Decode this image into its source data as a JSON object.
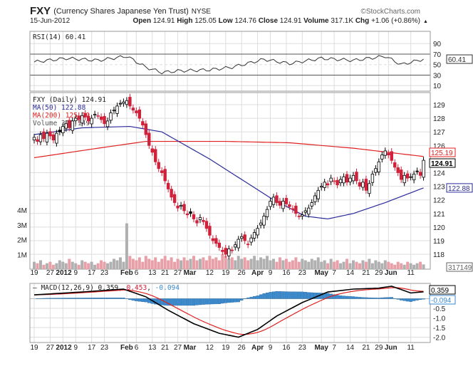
{
  "header": {
    "symbol": "FXY",
    "name": "(Currency Shares Japanese Yen Trust)",
    "exchange": "NYSE",
    "brand": "©StockCharts.com",
    "date": "15-Jun-2012",
    "open_label": "Open",
    "open": "124.91",
    "high_label": "High",
    "high": "125.05",
    "low_label": "Low",
    "low": "124.76",
    "close_label": "Close",
    "close": "124.91",
    "volume_label": "Volume",
    "volume": "317.1K",
    "chg_label": "Chg",
    "chg": "+1.06 (+0.86%)"
  },
  "colors": {
    "up": "#000000",
    "down": "#d0203a",
    "ma50": "#2a2a9a",
    "ma200": "#e02020",
    "macd_hist": "#3a8ad0",
    "volume_up": "#b0b0b0",
    "volume_down": "#e8a0a8"
  },
  "chart_data": [
    {
      "type": "line",
      "title": "RSI(14) 60.41",
      "label": "RSI(14) 60.41",
      "ylim": [
        0,
        100
      ],
      "yticks": [
        "90",
        "70",
        "50",
        "30",
        "10"
      ],
      "ytick_values": [
        90,
        70,
        50,
        30,
        10
      ],
      "last_tag": "60.41",
      "anchors": [
        [
          0,
          55
        ],
        [
          10,
          62
        ],
        [
          20,
          58
        ],
        [
          29,
          66
        ],
        [
          35,
          45
        ],
        [
          40,
          35
        ],
        [
          45,
          38
        ],
        [
          55,
          40
        ],
        [
          62,
          45
        ],
        [
          72,
          60
        ],
        [
          80,
          52
        ],
        [
          90,
          62
        ],
        [
          100,
          58
        ],
        [
          110,
          66
        ],
        [
          115,
          50
        ],
        [
          122,
          60.41
        ]
      ]
    },
    {
      "type": "candlestick",
      "legend": {
        "price": "FXY (Daily) 124.91",
        "ma50": "MA(50) 122.88",
        "ma200": "MA(200) 125.19",
        "volume": "Volume 317,149"
      },
      "ylim": [
        117.3,
        130
      ],
      "yticks": [
        "129",
        "128",
        "127",
        "126",
        "124",
        "123",
        "122",
        "121",
        "120",
        "119",
        "118"
      ],
      "ytick_values": [
        129,
        128,
        127,
        126,
        124,
        123,
        122,
        121,
        120,
        119,
        118
      ],
      "tags": {
        "close": "124.91",
        "ma200": "125.19",
        "ma50": "122.88",
        "volume": "317149"
      },
      "volume_ticks": [
        "4M",
        "3M",
        "2M",
        "1M"
      ],
      "volume_tick_values": [
        4,
        3,
        2,
        1
      ],
      "close": [
        126.6,
        126.3,
        126.8,
        126.5,
        126.9,
        126.7,
        126.4,
        126.9,
        127.0,
        127.4,
        127.6,
        127.3,
        127.8,
        128.0,
        127.9,
        128.2,
        128.1,
        127.8,
        128.0,
        128.3,
        128.2,
        127.9,
        127.6,
        127.8,
        128.4,
        128.6,
        128.9,
        129.1,
        129.2,
        129.3,
        128.9,
        128.6,
        128.4,
        128.0,
        127.5,
        126.8,
        126.0,
        125.5,
        124.8,
        124.3,
        124.0,
        123.4,
        122.8,
        122.2,
        121.8,
        121.4,
        121.6,
        121.2,
        120.9,
        121.0,
        120.6,
        120.3,
        120.7,
        120.4,
        119.9,
        119.4,
        119.0,
        118.8,
        118.5,
        118.2,
        118.0,
        118.4,
        118.3,
        118.7,
        119.1,
        119.3,
        119.0,
        118.7,
        119.2,
        119.6,
        119.9,
        120.3,
        120.8,
        121.3,
        121.9,
        122.2,
        121.8,
        121.6,
        121.9,
        121.7,
        121.5,
        121.3,
        121.0,
        120.8,
        120.9,
        121.2,
        121.4,
        121.8,
        122.3,
        122.7,
        123.0,
        123.3,
        123.1,
        123.6,
        123.4,
        123.1,
        123.5,
        123.7,
        123.3,
        123.6,
        123.8,
        123.4,
        123.0,
        123.3,
        122.7,
        123.2,
        123.9,
        124.3,
        124.8,
        125.3,
        125.6,
        125.3,
        124.9,
        124.4,
        124.0,
        123.5,
        123.8,
        123.6,
        123.7,
        123.9,
        124.1,
        123.8,
        124.91
      ],
      "volume_m": [
        0.5,
        0.4,
        0.6,
        0.3,
        0.4,
        0.5,
        0.3,
        0.4,
        0.6,
        0.5,
        0.4,
        0.7,
        0.5,
        0.4,
        0.3,
        0.6,
        0.5,
        0.4,
        0.5,
        0.3,
        0.4,
        0.6,
        0.5,
        0.4,
        0.5,
        0.7,
        0.6,
        0.8,
        0.5,
        3.1,
        0.9,
        0.7,
        0.6,
        0.8,
        0.5,
        0.9,
        0.7,
        0.6,
        0.8,
        0.5,
        0.7,
        0.9,
        0.6,
        0.8,
        0.5,
        0.7,
        0.6,
        0.8,
        0.6,
        0.7,
        0.9,
        0.6,
        0.7,
        0.8,
        0.6,
        0.9,
        0.7,
        0.8,
        0.6,
        1.0,
        0.9,
        0.7,
        0.8,
        0.6,
        0.9,
        0.7,
        0.8,
        0.6,
        0.7,
        0.9,
        0.6,
        0.8,
        0.7,
        0.9,
        0.6,
        0.7,
        0.5,
        0.8,
        0.6,
        0.7,
        0.5,
        0.6,
        0.8,
        0.5,
        0.7,
        0.6,
        0.5,
        0.7,
        0.6,
        0.8,
        0.5,
        0.6,
        0.4,
        0.7,
        0.5,
        0.6,
        0.4,
        0.5,
        0.7,
        0.4,
        0.6,
        0.5,
        0.4,
        0.6,
        0.5,
        0.7,
        0.4,
        0.6,
        0.5,
        0.4,
        0.6,
        0.5,
        0.4,
        0.3,
        0.5,
        0.4,
        0.3,
        0.5,
        0.4,
        0.3,
        0.4,
        0.5,
        0.32
      ],
      "ma200_anchors": [
        [
          0,
          125.1
        ],
        [
          20,
          125.8
        ],
        [
          35,
          126.3
        ],
        [
          60,
          126.3
        ],
        [
          80,
          126.2
        ],
        [
          100,
          125.8
        ],
        [
          122,
          125.19
        ]
      ],
      "ma50_anchors": [
        [
          0,
          126.8
        ],
        [
          15,
          127.3
        ],
        [
          30,
          127.4
        ],
        [
          40,
          127.0
        ],
        [
          55,
          125.0
        ],
        [
          65,
          123.5
        ],
        [
          75,
          122.0
        ],
        [
          85,
          120.8
        ],
        [
          92,
          120.6
        ],
        [
          100,
          121.0
        ],
        [
          110,
          121.8
        ],
        [
          122,
          122.88
        ]
      ]
    },
    {
      "type": "line",
      "label_prefix": "MACD(12,26,9)",
      "macd": "0.359",
      "signal": "0.453",
      "hist": "-0.094",
      "ylim": [
        -2.3,
        0.75
      ],
      "yticks": [
        "-0.5",
        "-1.0",
        "-1.5",
        "-2.0"
      ],
      "ytick_values": [
        -0.5,
        -1.0,
        -1.5,
        -2.0
      ],
      "tags": {
        "macd": "0.359",
        "hist": "-0.094"
      },
      "macd_anchors": [
        [
          0,
          0.2
        ],
        [
          15,
          0.35
        ],
        [
          28,
          0.5
        ],
        [
          35,
          0.1
        ],
        [
          42,
          -0.6
        ],
        [
          50,
          -1.3
        ],
        [
          58,
          -1.8
        ],
        [
          64,
          -2.0
        ],
        [
          70,
          -1.6
        ],
        [
          76,
          -0.9
        ],
        [
          84,
          -0.2
        ],
        [
          92,
          0.35
        ],
        [
          100,
          0.5
        ],
        [
          108,
          0.55
        ],
        [
          112,
          0.65
        ],
        [
          118,
          0.3
        ],
        [
          122,
          0.359
        ]
      ]
    }
  ],
  "x_axis": {
    "ticks": [
      {
        "d": 0,
        "l": "19"
      },
      {
        "d": 5,
        "l": "27"
      },
      {
        "d": 9,
        "l": "2012",
        "b": true
      },
      {
        "d": 13,
        "l": "9"
      },
      {
        "d": 18,
        "l": "17"
      },
      {
        "d": 22,
        "l": "23"
      },
      {
        "d": 29,
        "l": "Feb",
        "b": true
      },
      {
        "d": 32,
        "l": "6"
      },
      {
        "d": 37,
        "l": "13"
      },
      {
        "d": 41,
        "l": "21"
      },
      {
        "d": 45,
        "l": "27"
      },
      {
        "d": 48,
        "l": "Mar",
        "b": true
      },
      {
        "d": 55,
        "l": "12"
      },
      {
        "d": 60,
        "l": "19"
      },
      {
        "d": 65,
        "l": "26"
      },
      {
        "d": 70,
        "l": "Apr",
        "b": true
      },
      {
        "d": 74,
        "l": "9"
      },
      {
        "d": 79,
        "l": "16"
      },
      {
        "d": 84,
        "l": "23"
      },
      {
        "d": 90,
        "l": "May",
        "b": true
      },
      {
        "d": 94,
        "l": "7"
      },
      {
        "d": 99,
        "l": "14"
      },
      {
        "d": 104,
        "l": "21"
      },
      {
        "d": 108,
        "l": "29"
      },
      {
        "d": 111,
        "l": "Jun",
        "b": true
      },
      {
        "d": 118,
        "l": "11"
      }
    ]
  }
}
